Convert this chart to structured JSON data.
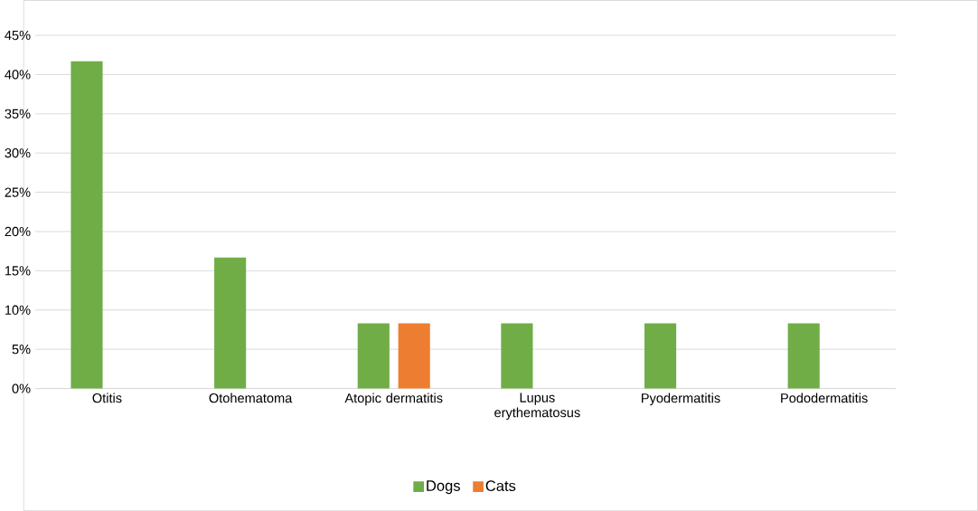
{
  "chart_data": {
    "type": "bar",
    "categories": [
      "Otitis",
      "Otohematoma",
      "Atopic dermatitis",
      "Lupus erythematosus",
      "Pyodermatitis",
      "Pododermatitis"
    ],
    "series": [
      {
        "name": "Dogs",
        "color": "#70ad47",
        "values": [
          41.7,
          16.7,
          8.3,
          8.3,
          8.3,
          8.3
        ]
      },
      {
        "name": "Cats",
        "color": "#ed7d31",
        "values": [
          0,
          0,
          8.3,
          0,
          0,
          0
        ]
      }
    ],
    "ylim": [
      0,
      45
    ],
    "yticks": [
      {
        "value": 0,
        "label": "0%"
      },
      {
        "value": 5,
        "label": "5%"
      },
      {
        "value": 10,
        "label": "10%"
      },
      {
        "value": 15,
        "label": "15%"
      },
      {
        "value": 20,
        "label": "20%"
      },
      {
        "value": 25,
        "label": "25%"
      },
      {
        "value": 30,
        "label": "30%"
      },
      {
        "value": 35,
        "label": "35%"
      },
      {
        "value": 40,
        "label": "40%"
      },
      {
        "value": 45,
        "label": "45%"
      }
    ],
    "grid": "y",
    "legend": "bottom"
  }
}
